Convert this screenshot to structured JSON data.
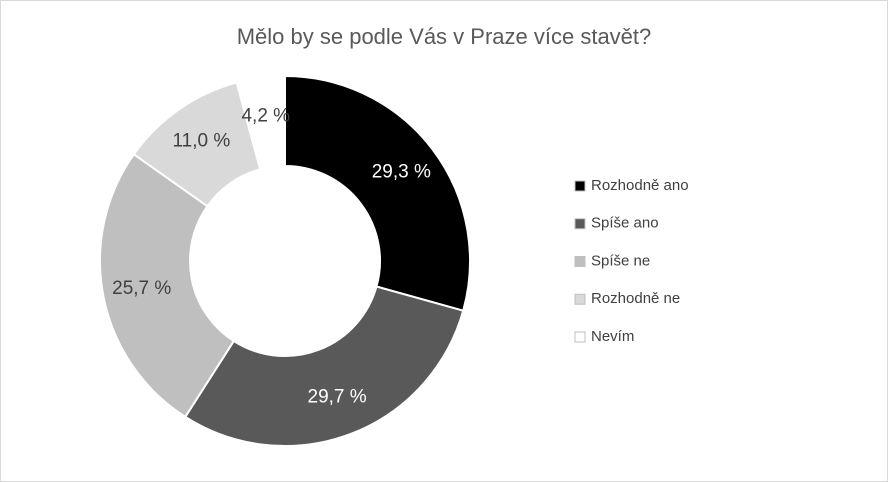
{
  "chart_data": {
    "type": "donut",
    "title": "Mělo by se podle Vás v Praze více stavět?",
    "categories": [
      "Rozhodně ano",
      "Spíše ano",
      "Spíše ne",
      "Rozhodně ne",
      "Nevím"
    ],
    "values": [
      29.3,
      29.7,
      25.7,
      11.0,
      4.2
    ],
    "value_labels": [
      "29,3 %",
      "29,7 %",
      "25,7 %",
      "11,0 %",
      "4,2 %"
    ],
    "colors": [
      "#000000",
      "#595959",
      "#bfbfbf",
      "#d9d9d9",
      "#ffffff"
    ],
    "legend": "right"
  }
}
